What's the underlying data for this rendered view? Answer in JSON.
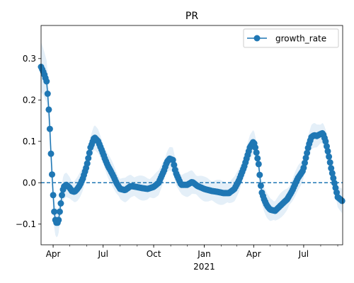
{
  "chart_data": {
    "type": "line",
    "title": "PR",
    "xlabel": "",
    "ylabel": "",
    "x_range": [
      "2020-03-10",
      "2021-09-10"
    ],
    "ylim": [
      -0.15,
      0.38
    ],
    "yticks": [
      -0.1,
      0.0,
      0.1,
      0.2,
      0.3
    ],
    "ytick_labels": [
      "−0.1",
      "0.0",
      "0.1",
      "0.2",
      "0.3"
    ],
    "xticks": [
      {
        "date": "2020-04-01",
        "label": "Apr",
        "sublabel": ""
      },
      {
        "date": "2020-07-01",
        "label": "Jul",
        "sublabel": ""
      },
      {
        "date": "2020-10-01",
        "label": "Oct",
        "sublabel": ""
      },
      {
        "date": "2021-01-01",
        "label": "Jan",
        "sublabel": "2021"
      },
      {
        "date": "2021-04-01",
        "label": "Apr",
        "sublabel": ""
      },
      {
        "date": "2021-07-01",
        "label": "Jul",
        "sublabel": ""
      }
    ],
    "grid": false,
    "legend_position": "top-right",
    "reference_line": {
      "y": 0,
      "style": "dashed",
      "color": "#1f77b4"
    },
    "series": [
      {
        "name": "growth_rate",
        "color": "#1f77b4",
        "marker": "circle",
        "band_color": "#d6e6f4",
        "x": [
          "2020-03-10",
          "2020-03-15",
          "2020-03-20",
          "2020-03-23",
          "2020-03-26",
          "2020-03-28",
          "2020-03-30",
          "2020-04-01",
          "2020-04-03",
          "2020-04-05",
          "2020-04-08",
          "2020-04-11",
          "2020-04-14",
          "2020-04-17",
          "2020-04-20",
          "2020-04-25",
          "2020-05-01",
          "2020-05-05",
          "2020-05-10",
          "2020-05-15",
          "2020-05-20",
          "2020-05-25",
          "2020-06-01",
          "2020-06-08",
          "2020-06-15",
          "2020-06-22",
          "2020-06-28",
          "2020-07-01",
          "2020-07-05",
          "2020-07-10",
          "2020-07-15",
          "2020-07-20",
          "2020-07-25",
          "2020-08-01",
          "2020-08-10",
          "2020-08-20",
          "2020-08-30",
          "2020-09-10",
          "2020-09-20",
          "2020-10-01",
          "2020-10-10",
          "2020-10-20",
          "2020-10-25",
          "2020-10-30",
          "2020-11-05",
          "2020-11-10",
          "2020-11-20",
          "2020-12-01",
          "2020-12-10",
          "2020-12-20",
          "2021-01-01",
          "2021-01-15",
          "2021-01-25",
          "2021-02-05",
          "2021-02-15",
          "2021-02-25",
          "2021-03-05",
          "2021-03-15",
          "2021-03-25",
          "2021-04-01",
          "2021-04-05",
          "2021-04-10",
          "2021-04-15",
          "2021-04-20",
          "2021-04-25",
          "2021-05-01",
          "2021-05-10",
          "2021-05-20",
          "2021-06-01",
          "2021-06-10",
          "2021-06-20",
          "2021-06-30",
          "2021-07-05",
          "2021-07-10",
          "2021-07-15",
          "2021-07-20",
          "2021-07-25",
          "2021-08-01",
          "2021-08-05",
          "2021-08-10",
          "2021-08-15",
          "2021-08-20",
          "2021-08-25",
          "2021-09-01",
          "2021-09-10"
        ],
        "y": [
          0.28,
          0.265,
          0.245,
          0.2,
          0.13,
          0.07,
          0.02,
          -0.03,
          -0.07,
          -0.09,
          -0.1,
          -0.09,
          -0.06,
          -0.03,
          -0.01,
          -0.005,
          -0.012,
          -0.02,
          -0.022,
          -0.015,
          -0.005,
          0.01,
          0.04,
          0.085,
          0.11,
          0.1,
          0.08,
          0.07,
          0.055,
          0.04,
          0.028,
          0.015,
          0.0,
          -0.015,
          -0.018,
          -0.008,
          -0.01,
          -0.013,
          -0.015,
          -0.01,
          0.0,
          0.03,
          0.05,
          0.058,
          0.055,
          0.025,
          -0.005,
          -0.005,
          0.002,
          -0.008,
          -0.015,
          -0.02,
          -0.022,
          -0.025,
          -0.025,
          -0.015,
          0.005,
          0.04,
          0.085,
          0.1,
          0.08,
          0.045,
          -0.02,
          -0.04,
          -0.055,
          -0.065,
          -0.068,
          -0.055,
          -0.04,
          -0.02,
          0.01,
          0.03,
          0.06,
          0.09,
          0.11,
          0.115,
          0.113,
          0.118,
          0.12,
          0.1,
          0.07,
          0.035,
          0.005,
          -0.035,
          -0.045
        ]
      }
    ]
  }
}
